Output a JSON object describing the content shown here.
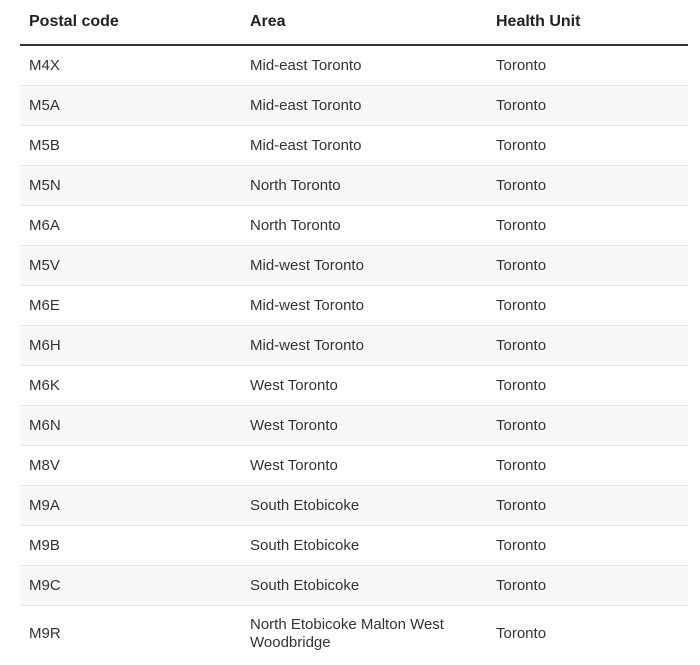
{
  "table": {
    "headers": [
      "Postal code",
      "Area",
      "Health Unit"
    ],
    "rows": [
      [
        "M4X",
        "Mid-east Toronto",
        "Toronto"
      ],
      [
        "M5A",
        "Mid-east Toronto",
        "Toronto"
      ],
      [
        "M5B",
        "Mid-east Toronto",
        "Toronto"
      ],
      [
        "M5N",
        "North Toronto",
        "Toronto"
      ],
      [
        "M6A",
        "North Toronto",
        "Toronto"
      ],
      [
        "M5V",
        "Mid-west Toronto",
        "Toronto"
      ],
      [
        "M6E",
        "Mid-west Toronto",
        "Toronto"
      ],
      [
        "M6H",
        "Mid-west Toronto",
        "Toronto"
      ],
      [
        "M6K",
        "West Toronto",
        "Toronto"
      ],
      [
        "M6N",
        "West Toronto",
        "Toronto"
      ],
      [
        "M8V",
        "West Toronto",
        "Toronto"
      ],
      [
        "M9A",
        "South Etobicoke",
        "Toronto"
      ],
      [
        "M9B",
        "South Etobicoke",
        "Toronto"
      ],
      [
        "M9C",
        "South Etobicoke",
        "Toronto"
      ],
      [
        "M9R",
        "North Etobicoke Malton West Woodbridge",
        "Toronto"
      ]
    ]
  }
}
